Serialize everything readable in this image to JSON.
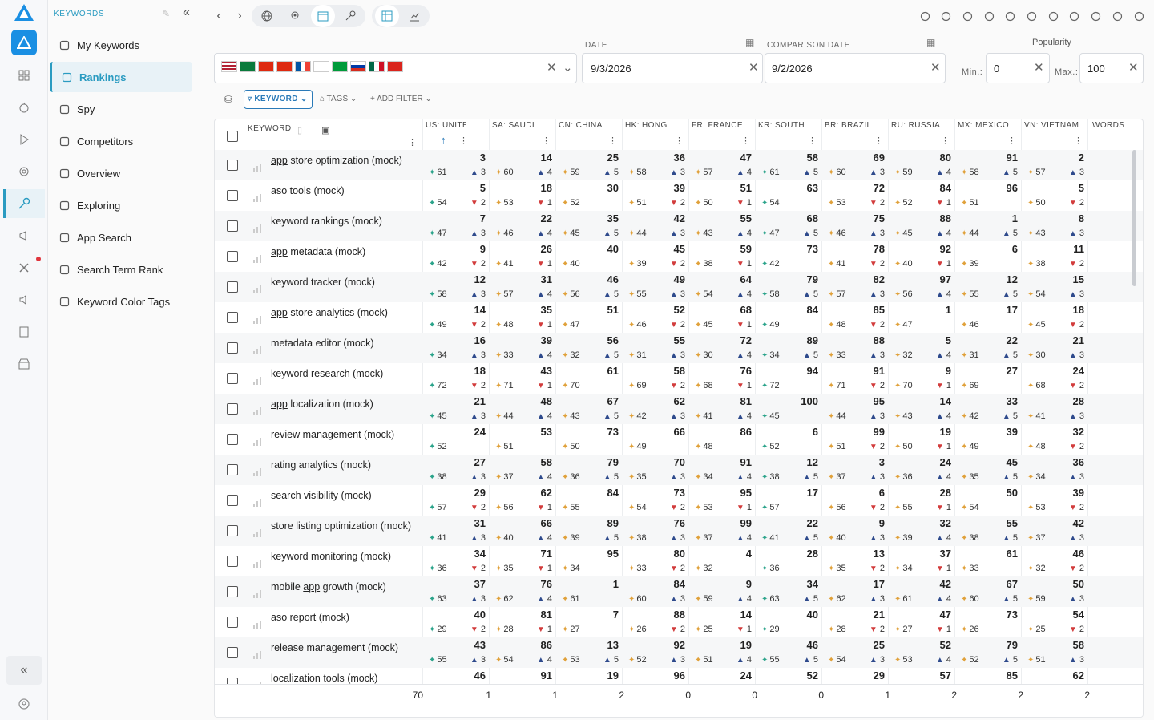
{
  "app": {
    "section_title": "KEYWORDS"
  },
  "sidebar": {
    "items": [
      {
        "label": "My Keywords",
        "icon": "bookmark-icon"
      },
      {
        "label": "Rankings",
        "icon": "key-icon",
        "active": true
      },
      {
        "label": "Spy",
        "icon": "table-icon"
      },
      {
        "label": "Competitors",
        "icon": "list-icon"
      },
      {
        "label": "Overview",
        "icon": "focus-icon"
      },
      {
        "label": "Exploring",
        "icon": "compass-icon"
      },
      {
        "label": "App Search",
        "icon": "bar-chart-icon"
      },
      {
        "label": "Search Term Rank",
        "icon": "document-icon"
      },
      {
        "label": "Keyword Color Tags",
        "icon": "palette-icon"
      }
    ]
  },
  "filters": {
    "date_label": "DATE",
    "date_value": "9/3/2026",
    "comparison_label": "COMPARISON DATE",
    "comparison_value": "9/2/2026",
    "popularity_label": "Popularity",
    "min_label": "Min.:",
    "min_value": "0",
    "max_label": "Max.:",
    "max_value": "100",
    "countries": [
      "US",
      "SA",
      "CN",
      "HK",
      "FR",
      "KR",
      "BR",
      "RU",
      "MX",
      "VN"
    ]
  },
  "toolbar2": {
    "keyword": "KEYWORD",
    "tags": "TAGS",
    "add_filter": "+ ADD FILTER"
  },
  "table": {
    "keyword_header": "KEYWORD",
    "columns": [
      "US: UNITED ST...",
      "SA: SAUDI",
      "CN: CHINA",
      "HK: HONG",
      "FR: FRANCE",
      "KR: SOUTH",
      "BR: BRAZIL",
      "RU: RUSSIA",
      "MX: MEXICO",
      "VN: VIETNAM",
      "WORDS"
    ],
    "rows": [
      {
        "kw": "app store optimization (mock)",
        "u": "app",
        "pop": [
          61,
          60,
          59,
          58,
          57,
          61,
          60,
          59,
          58,
          57
        ],
        "rank": [
          "3",
          "14",
          "25",
          "36",
          "47",
          "58",
          "69",
          "80",
          "91",
          "2"
        ],
        "chg": [
          [
            "u",
            3
          ],
          [
            "u",
            4
          ],
          [
            "u",
            5
          ],
          [
            "u",
            3
          ],
          [
            "u",
            4
          ],
          [
            "u",
            5
          ],
          [
            "u",
            3
          ],
          [
            "u",
            4
          ],
          [
            "u",
            5
          ],
          [
            "u",
            3
          ]
        ]
      },
      {
        "kw": "aso tools (mock)",
        "pop": [
          54,
          53,
          52,
          51,
          50,
          54,
          53,
          52,
          51,
          50
        ],
        "rank": [
          "5",
          "18",
          "30",
          "39",
          "51",
          "63",
          "72",
          "84",
          "96",
          "5"
        ],
        "chg": [
          [
            "d",
            2
          ],
          [
            "d",
            1
          ],
          [
            "",
            ""
          ],
          [
            "d",
            2
          ],
          [
            "d",
            1
          ],
          [
            "",
            ""
          ],
          [
            "d",
            2
          ],
          [
            "d",
            1
          ],
          [
            "",
            ""
          ],
          [
            "d",
            2
          ]
        ]
      },
      {
        "kw": "keyword rankings (mock)",
        "pop": [
          47,
          46,
          45,
          44,
          43,
          47,
          46,
          45,
          44,
          43
        ],
        "rank": [
          "7",
          "22",
          "35",
          "42",
          "55",
          "68",
          "75",
          "88",
          "1",
          "8"
        ],
        "chg": [
          [
            "u",
            3
          ],
          [
            "u",
            4
          ],
          [
            "u",
            5
          ],
          [
            "u",
            3
          ],
          [
            "u",
            4
          ],
          [
            "u",
            5
          ],
          [
            "u",
            3
          ],
          [
            "u",
            4
          ],
          [
            "u",
            5
          ],
          [
            "u",
            3
          ]
        ]
      },
      {
        "kw": "app metadata (mock)",
        "u": "app",
        "pop": [
          42,
          41,
          40,
          39,
          38,
          42,
          41,
          40,
          39,
          38
        ],
        "rank": [
          "9",
          "26",
          "40",
          "45",
          "59",
          "73",
          "78",
          "92",
          "6",
          "11"
        ],
        "chg": [
          [
            "d",
            2
          ],
          [
            "d",
            1
          ],
          [
            "",
            ""
          ],
          [
            "d",
            2
          ],
          [
            "d",
            1
          ],
          [
            "",
            ""
          ],
          [
            "d",
            2
          ],
          [
            "d",
            1
          ],
          [
            "",
            ""
          ],
          [
            "d",
            2
          ]
        ]
      },
      {
        "kw": "keyword tracker (mock)",
        "pop": [
          58,
          57,
          56,
          55,
          54,
          58,
          57,
          56,
          55,
          54
        ],
        "rank": [
          "12",
          "31",
          "46",
          "49",
          "64",
          "79",
          "82",
          "97",
          "12",
          "15"
        ],
        "chg": [
          [
            "u",
            3
          ],
          [
            "u",
            4
          ],
          [
            "u",
            5
          ],
          [
            "u",
            3
          ],
          [
            "u",
            4
          ],
          [
            "u",
            5
          ],
          [
            "u",
            3
          ],
          [
            "u",
            4
          ],
          [
            "u",
            5
          ],
          [
            "u",
            3
          ]
        ]
      },
      {
        "kw": "app store analytics (mock)",
        "u": "app",
        "pop": [
          49,
          48,
          47,
          46,
          45,
          49,
          48,
          47,
          46,
          45
        ],
        "rank": [
          "14",
          "35",
          "51",
          "52",
          "68",
          "84",
          "85",
          "1",
          "17",
          "18"
        ],
        "chg": [
          [
            "d",
            2
          ],
          [
            "d",
            1
          ],
          [
            "",
            ""
          ],
          [
            "d",
            2
          ],
          [
            "d",
            1
          ],
          [
            "",
            ""
          ],
          [
            "d",
            2
          ],
          [
            "",
            ""
          ],
          [
            "",
            ""
          ],
          [
            "d",
            2
          ]
        ]
      },
      {
        "kw": "metadata editor (mock)",
        "pop": [
          34,
          33,
          32,
          31,
          30,
          34,
          33,
          32,
          31,
          30
        ],
        "rank": [
          "16",
          "39",
          "56",
          "55",
          "72",
          "89",
          "88",
          "5",
          "22",
          "21"
        ],
        "chg": [
          [
            "u",
            3
          ],
          [
            "u",
            4
          ],
          [
            "u",
            5
          ],
          [
            "u",
            3
          ],
          [
            "u",
            4
          ],
          [
            "u",
            5
          ],
          [
            "u",
            3
          ],
          [
            "u",
            4
          ],
          [
            "u",
            5
          ],
          [
            "u",
            3
          ]
        ]
      },
      {
        "kw": "keyword research (mock)",
        "pop": [
          72,
          71,
          70,
          69,
          68,
          72,
          71,
          70,
          69,
          68
        ],
        "rank": [
          "18",
          "43",
          "61",
          "58",
          "76",
          "94",
          "91",
          "9",
          "27",
          "24"
        ],
        "chg": [
          [
            "d",
            2
          ],
          [
            "d",
            1
          ],
          [
            "",
            ""
          ],
          [
            "d",
            2
          ],
          [
            "d",
            1
          ],
          [
            "",
            ""
          ],
          [
            "d",
            2
          ],
          [
            "d",
            1
          ],
          [
            "",
            ""
          ],
          [
            "d",
            2
          ]
        ]
      },
      {
        "kw": "app localization (mock)",
        "u": "app",
        "pop": [
          45,
          44,
          43,
          42,
          41,
          45,
          44,
          43,
          42,
          41
        ],
        "rank": [
          "21",
          "48",
          "67",
          "62",
          "81",
          "100",
          "95",
          "14",
          "33",
          "28"
        ],
        "chg": [
          [
            "u",
            3
          ],
          [
            "u",
            4
          ],
          [
            "u",
            5
          ],
          [
            "u",
            3
          ],
          [
            "u",
            4
          ],
          [
            "",
            ""
          ],
          [
            "u",
            3
          ],
          [
            "u",
            4
          ],
          [
            "u",
            5
          ],
          [
            "u",
            3
          ]
        ]
      },
      {
        "kw": "review management (mock)",
        "pop": [
          52,
          51,
          50,
          49,
          48,
          52,
          51,
          50,
          49,
          48
        ],
        "rank": [
          "24",
          "53",
          "73",
          "66",
          "86",
          "6",
          "99",
          "19",
          "39",
          "32"
        ],
        "chg": [
          [
            "",
            ""
          ],
          [
            "",
            ""
          ],
          [
            "",
            ""
          ],
          [
            "",
            ""
          ],
          [
            "",
            ""
          ],
          [
            "",
            ""
          ],
          [
            "d",
            2
          ],
          [
            "d",
            1
          ],
          [
            "",
            ""
          ],
          [
            "d",
            2
          ]
        ]
      },
      {
        "kw": "rating analytics (mock)",
        "pop": [
          38,
          37,
          36,
          35,
          34,
          38,
          37,
          36,
          35,
          34
        ],
        "rank": [
          "27",
          "58",
          "79",
          "70",
          "91",
          "12",
          "3",
          "24",
          "45",
          "36"
        ],
        "chg": [
          [
            "u",
            3
          ],
          [
            "u",
            4
          ],
          [
            "u",
            5
          ],
          [
            "u",
            3
          ],
          [
            "u",
            4
          ],
          [
            "u",
            5
          ],
          [
            "u",
            3
          ],
          [
            "u",
            4
          ],
          [
            "u",
            5
          ],
          [
            "u",
            3
          ]
        ]
      },
      {
        "kw": "search visibility (mock)",
        "pop": [
          57,
          56,
          55,
          54,
          53,
          57,
          56,
          55,
          54,
          53
        ],
        "rank": [
          "29",
          "62",
          "84",
          "73",
          "95",
          "17",
          "6",
          "28",
          "50",
          "39"
        ],
        "chg": [
          [
            "d",
            2
          ],
          [
            "d",
            1
          ],
          [
            "",
            ""
          ],
          [
            "d",
            2
          ],
          [
            "d",
            1
          ],
          [
            "",
            ""
          ],
          [
            "d",
            2
          ],
          [
            "d",
            1
          ],
          [
            "",
            ""
          ],
          [
            "d",
            2
          ]
        ]
      },
      {
        "kw": "store listing optimization (mock)",
        "pop": [
          41,
          40,
          39,
          38,
          37,
          41,
          40,
          39,
          38,
          37
        ],
        "rank": [
          "31",
          "66",
          "89",
          "76",
          "99",
          "22",
          "9",
          "32",
          "55",
          "42"
        ],
        "chg": [
          [
            "u",
            3
          ],
          [
            "u",
            4
          ],
          [
            "u",
            5
          ],
          [
            "u",
            3
          ],
          [
            "u",
            4
          ],
          [
            "u",
            5
          ],
          [
            "u",
            3
          ],
          [
            "u",
            4
          ],
          [
            "u",
            5
          ],
          [
            "u",
            3
          ]
        ]
      },
      {
        "kw": "keyword monitoring (mock)",
        "pop": [
          36,
          35,
          34,
          33,
          32,
          36,
          35,
          34,
          33,
          32
        ],
        "rank": [
          "34",
          "71",
          "95",
          "80",
          "4",
          "28",
          "13",
          "37",
          "61",
          "46"
        ],
        "chg": [
          [
            "d",
            2
          ],
          [
            "d",
            1
          ],
          [
            "",
            ""
          ],
          [
            "d",
            2
          ],
          [
            "",
            ""
          ],
          [
            "",
            ""
          ],
          [
            "d",
            2
          ],
          [
            "d",
            1
          ],
          [
            "",
            ""
          ],
          [
            "d",
            2
          ]
        ]
      },
      {
        "kw": "mobile app growth (mock)",
        "u": "app",
        "pop": [
          63,
          62,
          61,
          60,
          59,
          63,
          62,
          61,
          60,
          59
        ],
        "rank": [
          "37",
          "76",
          "1",
          "84",
          "9",
          "34",
          "17",
          "42",
          "67",
          "50"
        ],
        "chg": [
          [
            "u",
            3
          ],
          [
            "u",
            4
          ],
          [
            "",
            ""
          ],
          [
            "u",
            3
          ],
          [
            "u",
            4
          ],
          [
            "u",
            5
          ],
          [
            "u",
            3
          ],
          [
            "u",
            4
          ],
          [
            "u",
            5
          ],
          [
            "u",
            3
          ]
        ]
      },
      {
        "kw": "aso report (mock)",
        "pop": [
          29,
          28,
          27,
          26,
          25,
          29,
          28,
          27,
          26,
          25
        ],
        "rank": [
          "40",
          "81",
          "7",
          "88",
          "14",
          "40",
          "21",
          "47",
          "73",
          "54"
        ],
        "chg": [
          [
            "d",
            2
          ],
          [
            "d",
            1
          ],
          [
            "",
            ""
          ],
          [
            "d",
            2
          ],
          [
            "d",
            1
          ],
          [
            "",
            ""
          ],
          [
            "d",
            2
          ],
          [
            "d",
            1
          ],
          [
            "",
            ""
          ],
          [
            "d",
            2
          ]
        ]
      },
      {
        "kw": "release management (mock)",
        "pop": [
          55,
          54,
          53,
          52,
          51,
          55,
          54,
          53,
          52,
          51
        ],
        "rank": [
          "43",
          "86",
          "13",
          "92",
          "19",
          "46",
          "25",
          "52",
          "79",
          "58"
        ],
        "chg": [
          [
            "u",
            3
          ],
          [
            "u",
            4
          ],
          [
            "u",
            5
          ],
          [
            "u",
            3
          ],
          [
            "u",
            4
          ],
          [
            "u",
            5
          ],
          [
            "u",
            3
          ],
          [
            "u",
            4
          ],
          [
            "u",
            5
          ],
          [
            "u",
            3
          ]
        ]
      },
      {
        "kw": "localization tools (mock)",
        "pop": [],
        "rank": [
          "46",
          "91",
          "19",
          "96",
          "24",
          "52",
          "29",
          "57",
          "85",
          "62"
        ],
        "chg": []
      }
    ],
    "footer": [
      "70",
      "1",
      "1",
      "2",
      "0",
      "0",
      "0",
      "1",
      "2",
      "2",
      "2"
    ]
  }
}
